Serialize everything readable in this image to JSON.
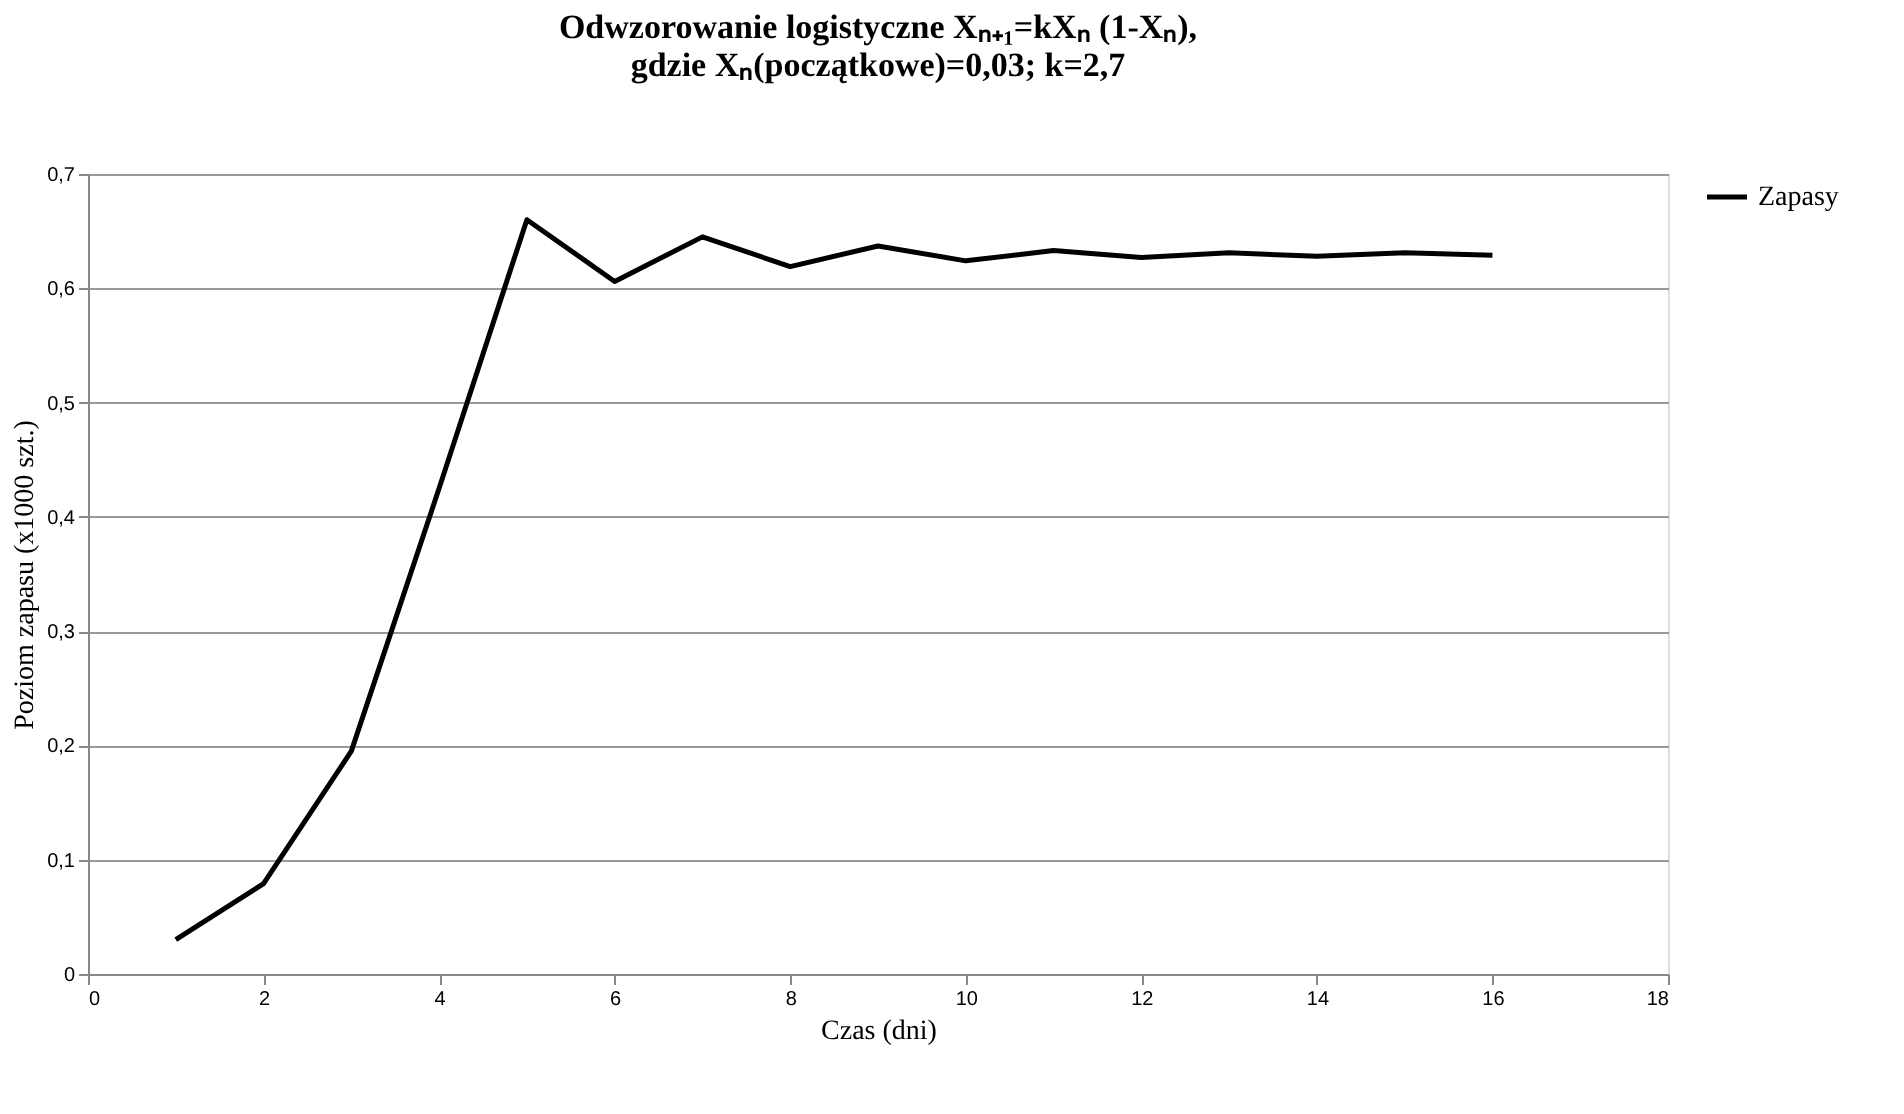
{
  "chart_data": {
    "type": "line",
    "title": [
      "Odwzorowanie logistyczne  Xₙ₊₁=kXₙ (1-Xₙ),",
      "gdzie  Xₙ(początkowe)=0,03;  k=2,7"
    ],
    "xlabel": "Czas (dni)",
    "ylabel": "Poziom zapasu (x1000 szt.)",
    "x": [
      1,
      2,
      3,
      4,
      5,
      6,
      7,
      8,
      9,
      10,
      11,
      12,
      13,
      14,
      15,
      16
    ],
    "series": [
      {
        "name": "Zapasy",
        "color": "#000000",
        "values": [
          0.03,
          0.079,
          0.195,
          0.425,
          0.66,
          0.606,
          0.645,
          0.619,
          0.637,
          0.624,
          0.633,
          0.627,
          0.631,
          0.628,
          0.631,
          0.629
        ]
      }
    ],
    "xlim": [
      0,
      18
    ],
    "xticks": [
      0,
      2,
      4,
      6,
      8,
      10,
      12,
      14,
      16,
      18
    ],
    "ylim": [
      0,
      0.7
    ],
    "yticks": [
      0,
      {
        "value": 0.1,
        "label": "0,1"
      },
      {
        "value": 0.2,
        "label": "0,2"
      },
      {
        "value": 0.3,
        "label": "0,3"
      },
      {
        "value": 0.4,
        "label": "0,4"
      },
      {
        "value": 0.5,
        "label": "0,5"
      },
      {
        "value": 0.6,
        "label": "0,6"
      },
      {
        "value": 0.7,
        "label": "0,7"
      }
    ],
    "grid": "y",
    "legend": "right",
    "marker": "none",
    "line_style": "solid"
  }
}
